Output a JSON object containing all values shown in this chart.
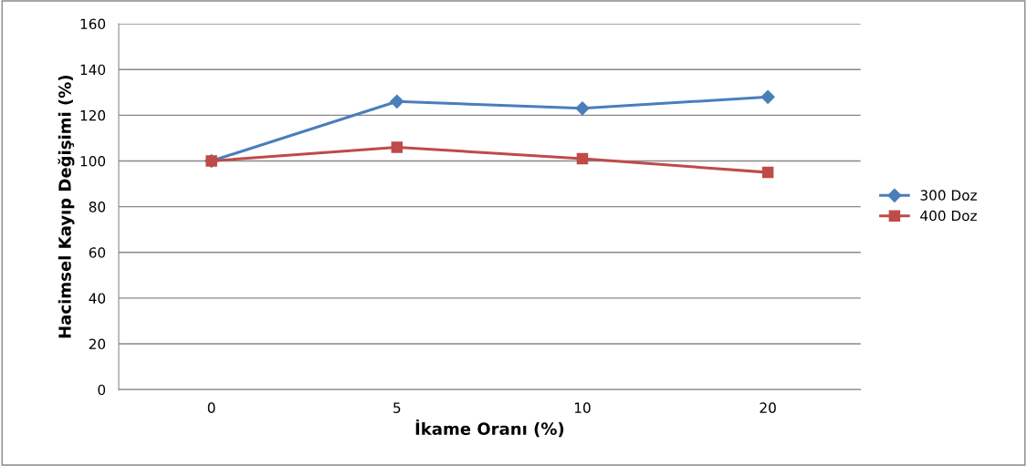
{
  "chart_data": {
    "type": "line",
    "xlabel": "İkame Oranı (%)",
    "ylabel": "Hacimsel Kayıp Değişimi (%)",
    "categories": [
      "0",
      "5",
      "10",
      "20"
    ],
    "series": [
      {
        "name": "300 Doz",
        "color": "#4a7ebb",
        "values": [
          100,
          126,
          123,
          128
        ],
        "marker": "diamond"
      },
      {
        "name": "400 Doz",
        "color": "#be4b48",
        "values": [
          100,
          106,
          101,
          95
        ],
        "marker": "square"
      }
    ],
    "ylim": [
      0,
      160
    ],
    "yticks": [
      0,
      20,
      40,
      60,
      80,
      100,
      120,
      140,
      160
    ],
    "grid": "y",
    "legend": "right",
    "line_style": "solid"
  }
}
